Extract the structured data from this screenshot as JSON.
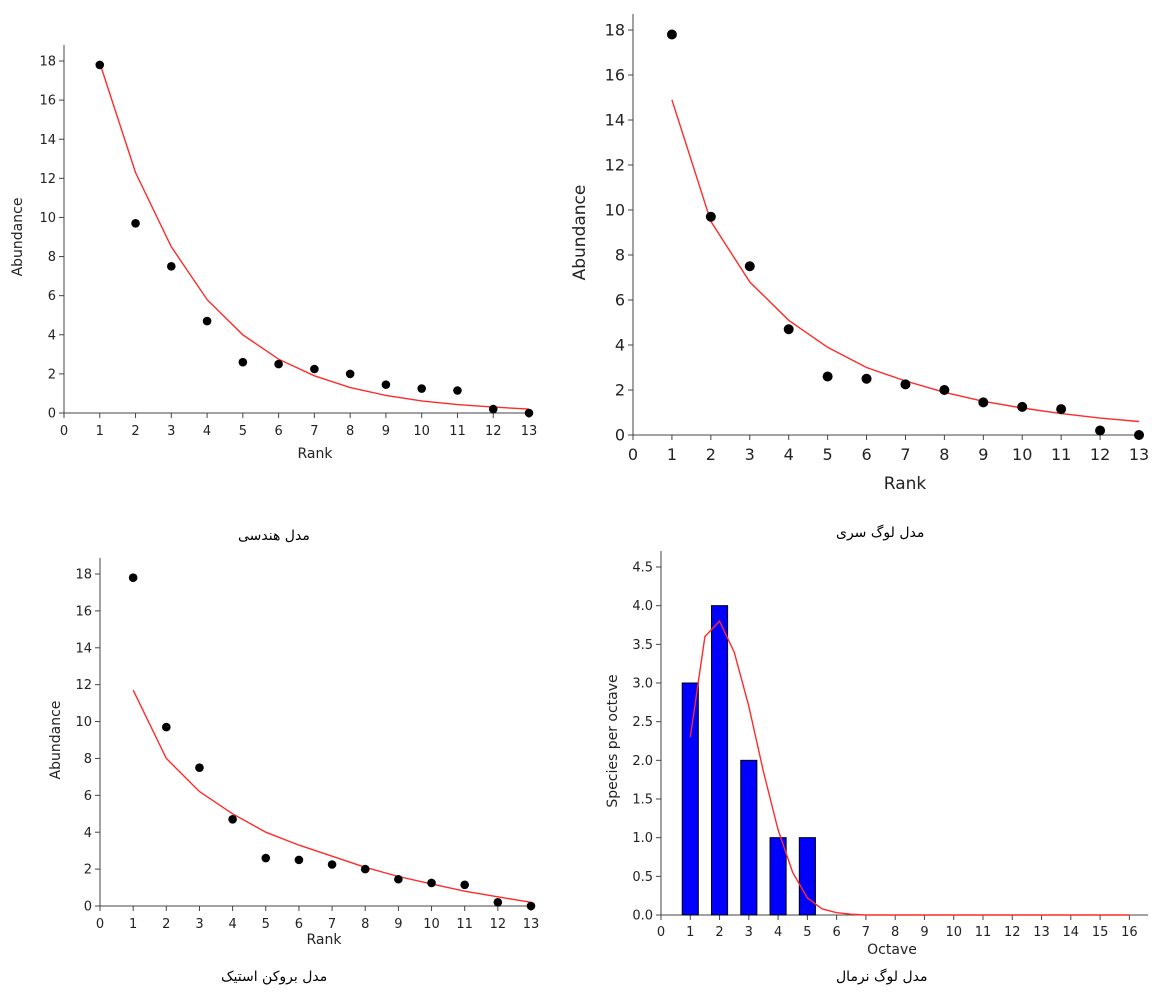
{
  "colors": {
    "model_line": "#ff2a2a",
    "points": "#000000",
    "bars": "#0000ff",
    "bar_edge": "#000000",
    "axis": "#444444"
  },
  "chart_data": [
    {
      "id": "geometric",
      "caption": "مدل هندسی",
      "type": "scatter",
      "xlabel": "Rank",
      "ylabel": "Abundance",
      "xlim": [
        0,
        13
      ],
      "ylim": [
        0,
        18
      ],
      "xticks": [
        "0",
        "1",
        "2",
        "3",
        "4",
        "5",
        "6",
        "7",
        "8",
        "9",
        "10",
        "11",
        "12",
        "13"
      ],
      "yticks": [
        "0",
        "2",
        "4",
        "6",
        "8",
        "10",
        "12",
        "14",
        "16",
        "18"
      ],
      "points": {
        "x": [
          1,
          2,
          3,
          4,
          5,
          6,
          7,
          8,
          9,
          10,
          11,
          12,
          13
        ],
        "y": [
          17.8,
          9.7,
          7.5,
          4.7,
          2.6,
          2.5,
          2.25,
          2.0,
          1.45,
          1.25,
          1.15,
          0.2,
          0.0
        ]
      },
      "line": {
        "x": [
          1,
          2,
          3,
          4,
          5,
          6,
          7,
          8,
          9,
          10,
          11,
          12,
          13
        ],
        "y": [
          17.9,
          12.3,
          8.5,
          5.8,
          4.0,
          2.75,
          1.9,
          1.3,
          0.9,
          0.62,
          0.43,
          0.3,
          0.2
        ]
      }
    },
    {
      "id": "log-series",
      "caption": "مدل لوگ سری",
      "type": "scatter",
      "xlabel": "Rank",
      "ylabel": "Abundance",
      "xlim": [
        0,
        13
      ],
      "ylim": [
        0,
        18
      ],
      "xticks": [
        "0",
        "1",
        "2",
        "3",
        "4",
        "5",
        "6",
        "7",
        "8",
        "9",
        "10",
        "11",
        "12",
        "13"
      ],
      "yticks": [
        "0",
        "2",
        "4",
        "6",
        "8",
        "10",
        "12",
        "14",
        "16",
        "18"
      ],
      "points": {
        "x": [
          1,
          2,
          3,
          4,
          5,
          6,
          7,
          8,
          9,
          10,
          11,
          12,
          13
        ],
        "y": [
          17.8,
          9.7,
          7.5,
          4.7,
          2.6,
          2.5,
          2.25,
          2.0,
          1.45,
          1.25,
          1.15,
          0.2,
          0.0
        ]
      },
      "line": {
        "x": [
          1,
          2,
          3,
          4,
          5,
          6,
          7,
          8,
          9,
          10,
          11,
          12,
          13
        ],
        "y": [
          14.9,
          9.5,
          6.8,
          5.1,
          3.9,
          3.0,
          2.4,
          1.9,
          1.5,
          1.2,
          0.95,
          0.75,
          0.6
        ]
      }
    },
    {
      "id": "broken-stick",
      "caption": "مدل بروکن استیک",
      "type": "scatter",
      "xlabel": "Rank",
      "ylabel": "Abundance",
      "xlim": [
        0,
        13
      ],
      "ylim": [
        0,
        18
      ],
      "xticks": [
        "0",
        "1",
        "2",
        "3",
        "4",
        "5",
        "6",
        "7",
        "8",
        "9",
        "10",
        "11",
        "12",
        "13"
      ],
      "yticks": [
        "0",
        "2",
        "4",
        "6",
        "8",
        "10",
        "12",
        "14",
        "16",
        "18"
      ],
      "points": {
        "x": [
          1,
          2,
          3,
          4,
          5,
          6,
          7,
          8,
          9,
          10,
          11,
          12,
          13
        ],
        "y": [
          17.8,
          9.7,
          7.5,
          4.7,
          2.6,
          2.5,
          2.25,
          2.0,
          1.45,
          1.25,
          1.15,
          0.2,
          0.0
        ]
      },
      "line": {
        "x": [
          1,
          2,
          3,
          4,
          5,
          6,
          7,
          8,
          9,
          10,
          11,
          12,
          13
        ],
        "y": [
          11.7,
          8.0,
          6.2,
          5.0,
          4.0,
          3.3,
          2.7,
          2.1,
          1.6,
          1.2,
          0.8,
          0.5,
          0.2
        ]
      }
    },
    {
      "id": "log-normal",
      "caption": "مدل لوگ نرمال",
      "type": "bar",
      "xlabel": "Octave",
      "ylabel": "Species per octave",
      "xlim": [
        0,
        16.5
      ],
      "ylim": [
        0,
        4.5
      ],
      "xticks": [
        "0",
        "1",
        "2",
        "3",
        "4",
        "5",
        "6",
        "7",
        "8",
        "9",
        "10",
        "11",
        "12",
        "13",
        "14",
        "15",
        "16"
      ],
      "yticks": [
        "0.0",
        "0.5",
        "1.0",
        "1.5",
        "2.0",
        "2.5",
        "3.0",
        "3.5",
        "4.0",
        "4.5"
      ],
      "bars": {
        "x": [
          1,
          2,
          3,
          4,
          5
        ],
        "values": [
          3,
          4,
          2,
          1,
          1
        ]
      },
      "line": {
        "x": [
          1,
          1.5,
          2,
          2.5,
          3,
          3.5,
          4,
          4.5,
          5,
          5.5,
          6,
          6.5,
          7,
          8,
          9,
          10,
          11,
          12,
          13,
          14,
          15,
          16
        ],
        "y": [
          2.3,
          3.6,
          3.8,
          3.4,
          2.7,
          1.85,
          1.1,
          0.55,
          0.22,
          0.08,
          0.03,
          0.01,
          0,
          0,
          0,
          0,
          0,
          0,
          0,
          0,
          0,
          0
        ]
      }
    }
  ]
}
